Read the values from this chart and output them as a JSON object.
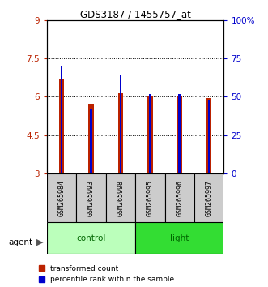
{
  "title": "GDS3187 / 1455757_at",
  "samples": [
    "GSM265984",
    "GSM265993",
    "GSM265998",
    "GSM265995",
    "GSM265996",
    "GSM265997"
  ],
  "red_values": [
    6.72,
    5.72,
    6.14,
    6.05,
    6.05,
    5.95
  ],
  "blue_values": [
    70.0,
    42.0,
    64.0,
    52.0,
    52.0,
    48.0
  ],
  "ylim_left": [
    3,
    9
  ],
  "ylim_right": [
    0,
    100
  ],
  "yticks_left": [
    3,
    4.5,
    6,
    7.5,
    9
  ],
  "ytick_labels_left": [
    "3",
    "4.5",
    "6",
    "7.5",
    "9"
  ],
  "yticks_right": [
    0,
    25,
    50,
    75,
    100
  ],
  "ytick_labels_right": [
    "0",
    "25",
    "50",
    "75",
    "100%"
  ],
  "red_color": "#bb2200",
  "blue_color": "#0000cc",
  "control_color": "#bbffbb",
  "light_color": "#33dd33",
  "control_text_color": "#006600",
  "light_text_color": "#006600",
  "agent_label": "agent",
  "legend_red": "transformed count",
  "legend_blue": "percentile rank within the sample",
  "bar_bottom": 3.0,
  "blue_scale": 0.06
}
